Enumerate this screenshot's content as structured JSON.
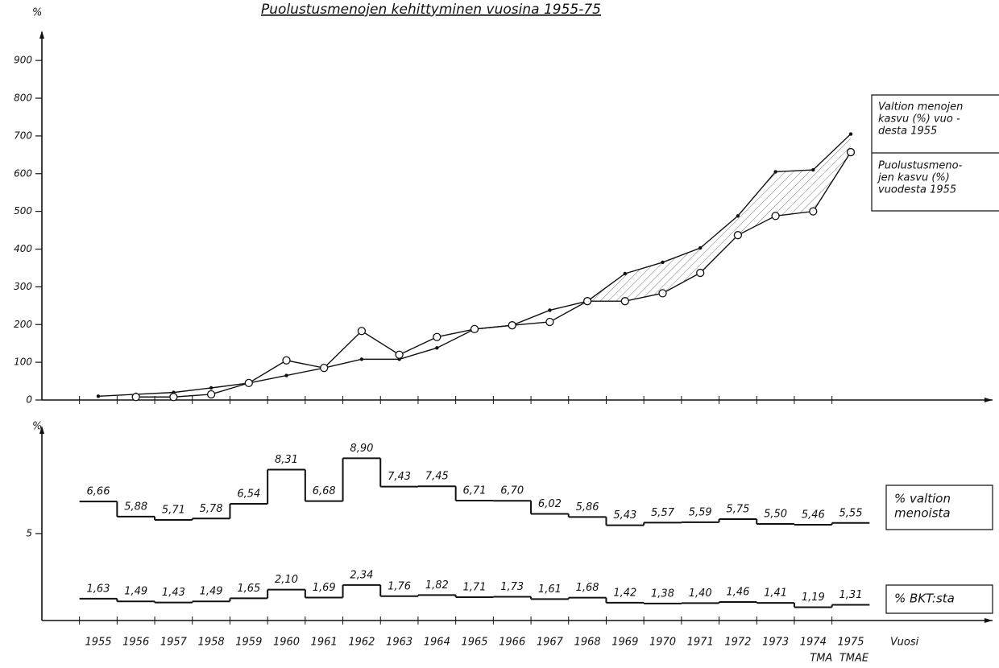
{
  "chart_data": [
    {
      "type": "line",
      "title": "Puolustusmenojen kehittyminen vuosina 1955-75",
      "y_label": "%",
      "categories": [
        "1955",
        "1956",
        "1957",
        "1958",
        "1959",
        "1960",
        "1961",
        "1962",
        "1963",
        "1964",
        "1965",
        "1966",
        "1967",
        "1968",
        "1969",
        "1970",
        "1971",
        "1972",
        "1973",
        "1974",
        "1975"
      ],
      "ylim": [
        0,
        975
      ],
      "yticks": [
        0,
        100,
        200,
        300,
        400,
        500,
        600,
        700,
        800,
        900
      ],
      "series": [
        {
          "name_lines": [
            "Valtion menojen",
            "kasvu (%) vuo -",
            "desta 1955"
          ],
          "marker": "dot",
          "color": "#111",
          "values": [
            10,
            15,
            20,
            32,
            45,
            65,
            85,
            108,
            108,
            138,
            188,
            198,
            238,
            262,
            335,
            365,
            403,
            488,
            605,
            610,
            705
          ]
        },
        {
          "name_lines": [
            "Puolustusmeno-",
            "jen kasvu (%)",
            "vuodesta 1955"
          ],
          "marker": "circle",
          "color": "#111",
          "values": [
            null,
            8,
            8,
            15,
            45,
            105,
            85,
            183,
            120,
            167,
            188,
            198,
            207,
            262,
            262,
            283,
            337,
            437,
            488,
            500,
            657
          ]
        }
      ]
    },
    {
      "type": "step",
      "y_label": "%",
      "x_label": "Vuosi",
      "categories": [
        "1955",
        "1956",
        "1957",
        "1958",
        "1959",
        "1960",
        "1961",
        "1962",
        "1963",
        "1964",
        "1965",
        "1966",
        "1967",
        "1968",
        "1969",
        "1970",
        "1971",
        "1972",
        "1973",
        "1974",
        "1975"
      ],
      "x_sublabels": [
        null,
        null,
        null,
        null,
        null,
        null,
        null,
        null,
        null,
        null,
        null,
        null,
        null,
        null,
        null,
        null,
        null,
        null,
        null,
        "TMA",
        "TMAE"
      ],
      "ylim": [
        0.5,
        10.5
      ],
      "yticks": [
        5
      ],
      "series": [
        {
          "name_lines": [
            "% valtion",
            "menoista"
          ],
          "color": "#111",
          "values": [
            6.66,
            5.88,
            5.71,
            5.78,
            6.54,
            8.31,
            6.68,
            8.9,
            7.43,
            7.45,
            6.71,
            6.7,
            6.02,
            5.86,
            5.43,
            5.57,
            5.59,
            5.75,
            5.5,
            5.46,
            5.55
          ],
          "value_labels": [
            "6,66",
            "5,88",
            "5,71",
            "5,78",
            "6,54",
            "8,31",
            "6,68",
            "8,90",
            "7,43",
            "7,45",
            "6,71",
            "6,70",
            "6,02",
            "5,86",
            "5,43",
            "5,57",
            "5,59",
            "5,75",
            "5,50",
            "5,46",
            "5,55"
          ]
        },
        {
          "name_lines": [
            "% BKT:sta"
          ],
          "color": "#111",
          "values": [
            1.63,
            1.49,
            1.43,
            1.49,
            1.65,
            2.1,
            1.69,
            2.34,
            1.76,
            1.82,
            1.71,
            1.73,
            1.61,
            1.68,
            1.42,
            1.38,
            1.4,
            1.46,
            1.41,
            1.19,
            1.31
          ],
          "value_labels": [
            "1,63",
            "1,49",
            "1,43",
            "1,49",
            "1,65",
            "2,10",
            "1,69",
            "2,34",
            "1,76",
            "1,82",
            "1,71",
            "1,73",
            "1,61",
            "1,68",
            "1,42",
            "1,38",
            "1,40",
            "1,46",
            "1,41",
            "1,19",
            "1,31"
          ]
        }
      ]
    }
  ]
}
